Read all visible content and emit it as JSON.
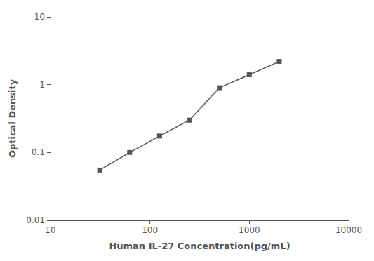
{
  "chart_data": {
    "type": "line",
    "xlabel": "Human IL-27 Concentration(pg/mL)",
    "ylabel": "Optical Density",
    "x": [
      31.25,
      62.5,
      125,
      250,
      500,
      1000,
      2000
    ],
    "values": [
      0.055,
      0.1,
      0.175,
      0.3,
      0.9,
      1.4,
      2.2
    ],
    "xlim": [
      10,
      10000
    ],
    "ylim": [
      0.01,
      10
    ],
    "xticks": [
      10,
      100,
      1000,
      10000
    ],
    "yticks": [
      0.01,
      0.1,
      1,
      10
    ],
    "log": true,
    "grid": false,
    "color": "#555555",
    "marker": "square",
    "line_style": "solid"
  }
}
